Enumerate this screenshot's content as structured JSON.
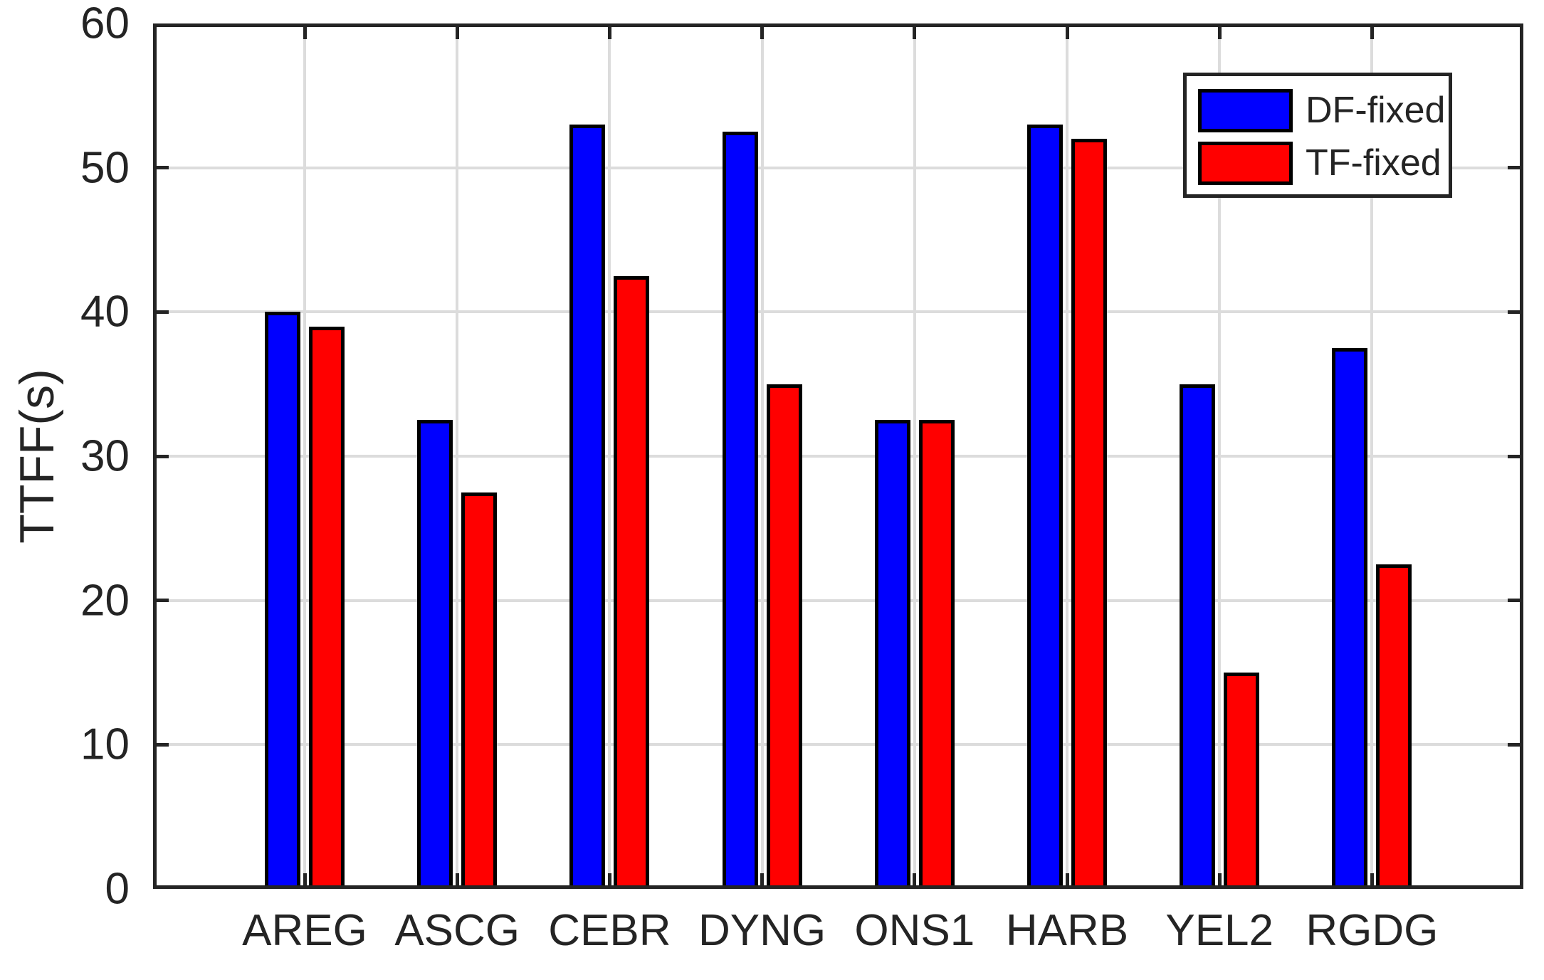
{
  "chart_data": {
    "type": "bar",
    "title": "",
    "categories": [
      "AREG",
      "ASCG",
      "CEBR",
      "DYNG",
      "ONS1",
      "HARB",
      "YEL2",
      "RGDG"
    ],
    "series": [
      {
        "name": "DF-fixed",
        "color": "#0000FF",
        "values": [
          40,
          32.5,
          53,
          52.5,
          32.5,
          53,
          35,
          37.5
        ]
      },
      {
        "name": "TF-fixed",
        "color": "#FF0000",
        "values": [
          39,
          27.5,
          42.5,
          35,
          32.5,
          52,
          15,
          22.5
        ]
      }
    ],
    "xlabel": "",
    "ylabel": "TTFF(s)",
    "ylim": [
      0,
      60
    ],
    "yticks": [
      0,
      10,
      20,
      30,
      40,
      50,
      60
    ],
    "grid": true,
    "legend_position": "top-right"
  },
  "colors": {
    "background": "#FFFFFF",
    "axis": "#242424",
    "grid": "#DCDCDC",
    "text": "#242424",
    "bar_edge": "#000000"
  }
}
